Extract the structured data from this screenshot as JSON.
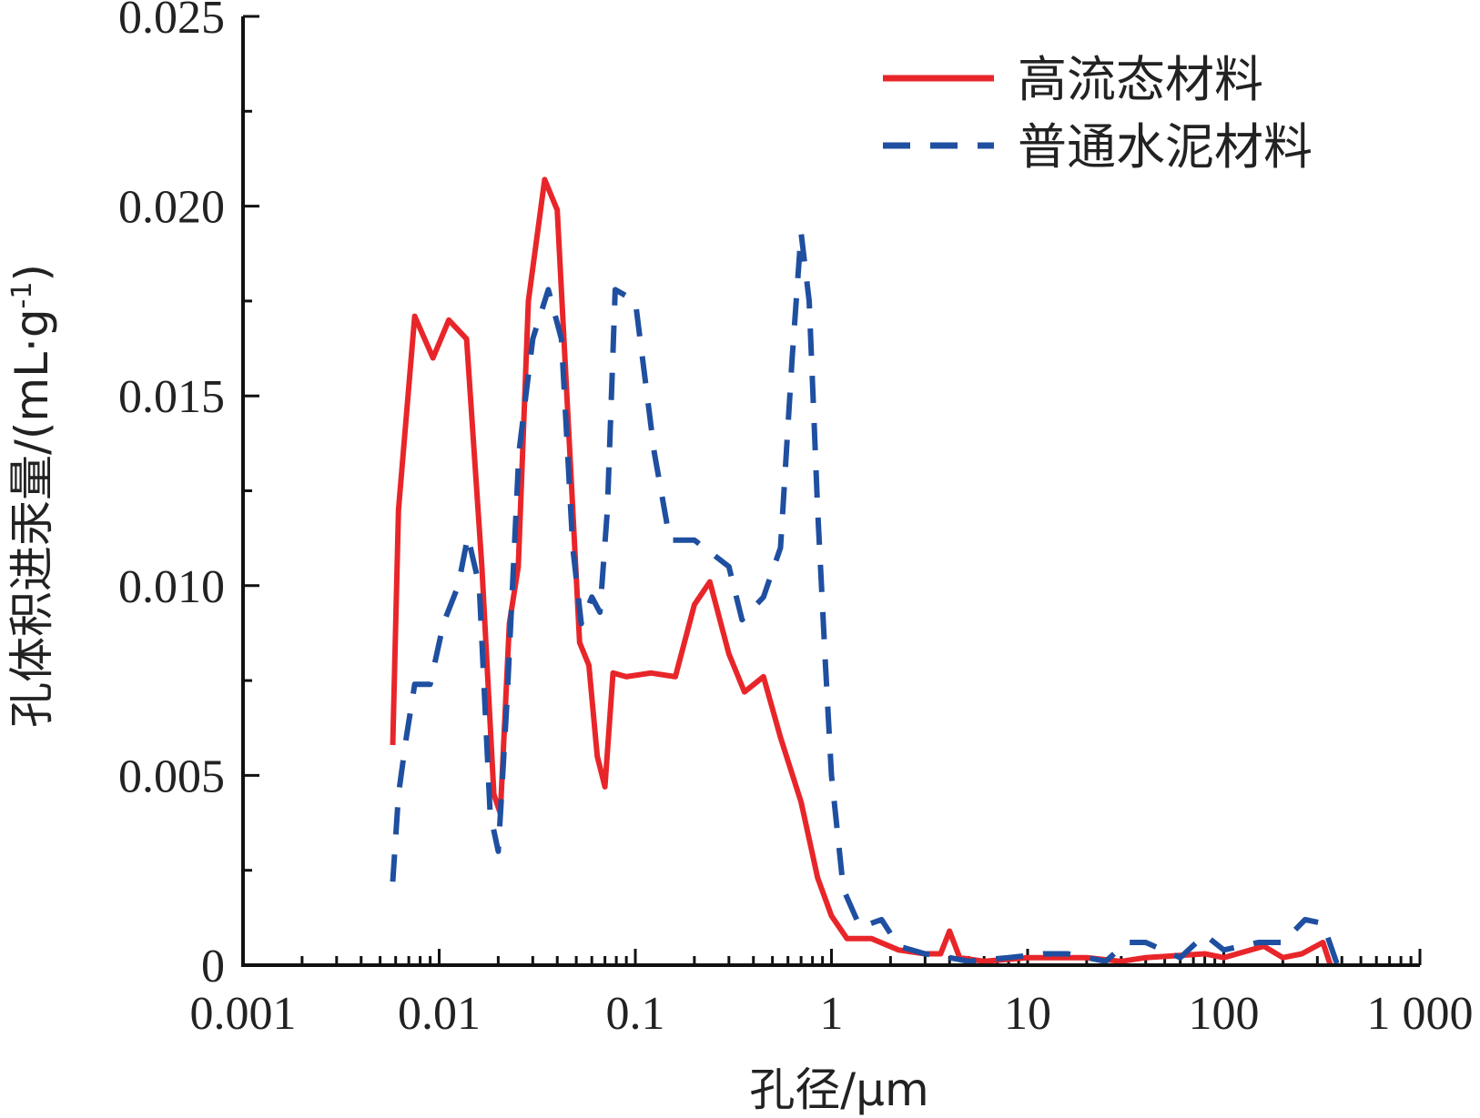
{
  "chart_data": {
    "type": "line",
    "xscale": "log",
    "xlim": [
      0.001,
      1000
    ],
    "ylim": [
      0,
      0.025
    ],
    "xticks": [
      0.001,
      0.01,
      0.1,
      1,
      10,
      100,
      1000
    ],
    "xtick_labels": [
      "0.001",
      "0.01",
      "0.1",
      "1",
      "10",
      "100",
      "1 000"
    ],
    "yticks": [
      0,
      0.005,
      0.01,
      0.015,
      0.02,
      0.025
    ],
    "ytick_labels": [
      "0",
      "0.005",
      "0.010",
      "0.015",
      "0.020",
      "0.025"
    ],
    "xlabel": "孔径/μm",
    "ylabel": "孔体积进汞量/(mL·g",
    "ylabel_sup": "-1",
    "ylabel_end": ")",
    "legend_position": "top-right",
    "series": [
      {
        "name": "高流态材料",
        "color": "#e8262a",
        "style": "solid",
        "points": [
          [
            0.0058,
            0.0058
          ],
          [
            0.0062,
            0.012
          ],
          [
            0.0075,
            0.0171
          ],
          [
            0.0093,
            0.016
          ],
          [
            0.0112,
            0.017
          ],
          [
            0.0138,
            0.0165
          ],
          [
            0.0165,
            0.0105
          ],
          [
            0.019,
            0.0045
          ],
          [
            0.0205,
            0.004
          ],
          [
            0.0228,
            0.009
          ],
          [
            0.0253,
            0.0105
          ],
          [
            0.0285,
            0.0175
          ],
          [
            0.0345,
            0.0207
          ],
          [
            0.04,
            0.0199
          ],
          [
            0.048,
            0.012
          ],
          [
            0.052,
            0.0085
          ],
          [
            0.058,
            0.0079
          ],
          [
            0.064,
            0.0055
          ],
          [
            0.07,
            0.0047
          ],
          [
            0.077,
            0.0077
          ],
          [
            0.09,
            0.0076
          ],
          [
            0.12,
            0.0077
          ],
          [
            0.16,
            0.0076
          ],
          [
            0.2,
            0.0095
          ],
          [
            0.24,
            0.0101
          ],
          [
            0.3,
            0.0082
          ],
          [
            0.36,
            0.0072
          ],
          [
            0.45,
            0.0076
          ],
          [
            0.55,
            0.006
          ],
          [
            0.7,
            0.0043
          ],
          [
            0.85,
            0.0023
          ],
          [
            1.0,
            0.0013
          ],
          [
            1.2,
            0.0007
          ],
          [
            1.6,
            0.0007
          ],
          [
            2.2,
            0.0004
          ],
          [
            3.0,
            0.0003
          ],
          [
            3.6,
            0.0003
          ],
          [
            4.0,
            0.0009
          ],
          [
            4.5,
            0.0002
          ],
          [
            6.0,
            0.0001
          ],
          [
            10.0,
            0.0002
          ],
          [
            20.0,
            0.0002
          ],
          [
            30.0,
            0.0001
          ],
          [
            40.0,
            0.0002
          ],
          [
            80.0,
            0.0003
          ],
          [
            100.0,
            0.0002
          ],
          [
            160.0,
            0.0005
          ],
          [
            200.0,
            0.0002
          ],
          [
            250.0,
            0.0003
          ],
          [
            320.0,
            0.0006
          ],
          [
            350.0,
            0.0
          ]
        ]
      },
      {
        "name": "普通水泥材料",
        "color": "#1f4fa0",
        "style": "dashed",
        "points": [
          [
            0.0058,
            0.0022
          ],
          [
            0.0062,
            0.0045
          ],
          [
            0.0068,
            0.006
          ],
          [
            0.0075,
            0.0074
          ],
          [
            0.009,
            0.0074
          ],
          [
            0.0105,
            0.009
          ],
          [
            0.0125,
            0.01
          ],
          [
            0.014,
            0.0113
          ],
          [
            0.016,
            0.01
          ],
          [
            0.0182,
            0.004
          ],
          [
            0.02,
            0.003
          ],
          [
            0.0222,
            0.007
          ],
          [
            0.0255,
            0.0135
          ],
          [
            0.03,
            0.0165
          ],
          [
            0.036,
            0.0178
          ],
          [
            0.042,
            0.0165
          ],
          [
            0.048,
            0.011
          ],
          [
            0.053,
            0.009
          ],
          [
            0.06,
            0.0097
          ],
          [
            0.066,
            0.0093
          ],
          [
            0.072,
            0.012
          ],
          [
            0.079,
            0.0178
          ],
          [
            0.1,
            0.0175
          ],
          [
            0.125,
            0.0135
          ],
          [
            0.15,
            0.0112
          ],
          [
            0.2,
            0.0112
          ],
          [
            0.3,
            0.0105
          ],
          [
            0.35,
            0.0091
          ],
          [
            0.45,
            0.0097
          ],
          [
            0.55,
            0.011
          ],
          [
            0.63,
            0.016
          ],
          [
            0.7,
            0.0193
          ],
          [
            0.77,
            0.0175
          ],
          [
            0.85,
            0.012
          ],
          [
            0.93,
            0.008
          ],
          [
            1.0,
            0.005
          ],
          [
            1.15,
            0.002
          ],
          [
            1.4,
            0.001
          ],
          [
            1.8,
            0.0012
          ],
          [
            2.2,
            0.0005
          ],
          [
            3.0,
            0.0003
          ],
          [
            4.0,
            0.0002
          ],
          [
            5.0,
            0.0001
          ],
          [
            8.0,
            0.0002
          ],
          [
            12.0,
            0.0003
          ],
          [
            16.0,
            0.0003
          ],
          [
            25.0,
            0.0001
          ],
          [
            32.0,
            0.0006
          ],
          [
            40.0,
            0.0006
          ],
          [
            60.0,
            0.0002
          ],
          [
            80.0,
            0.0008
          ],
          [
            100.0,
            0.0004
          ],
          [
            150.0,
            0.0006
          ],
          [
            200.0,
            0.0006
          ],
          [
            260.0,
            0.0012
          ],
          [
            320.0,
            0.0011
          ],
          [
            380.0,
            0.0
          ]
        ]
      }
    ]
  }
}
